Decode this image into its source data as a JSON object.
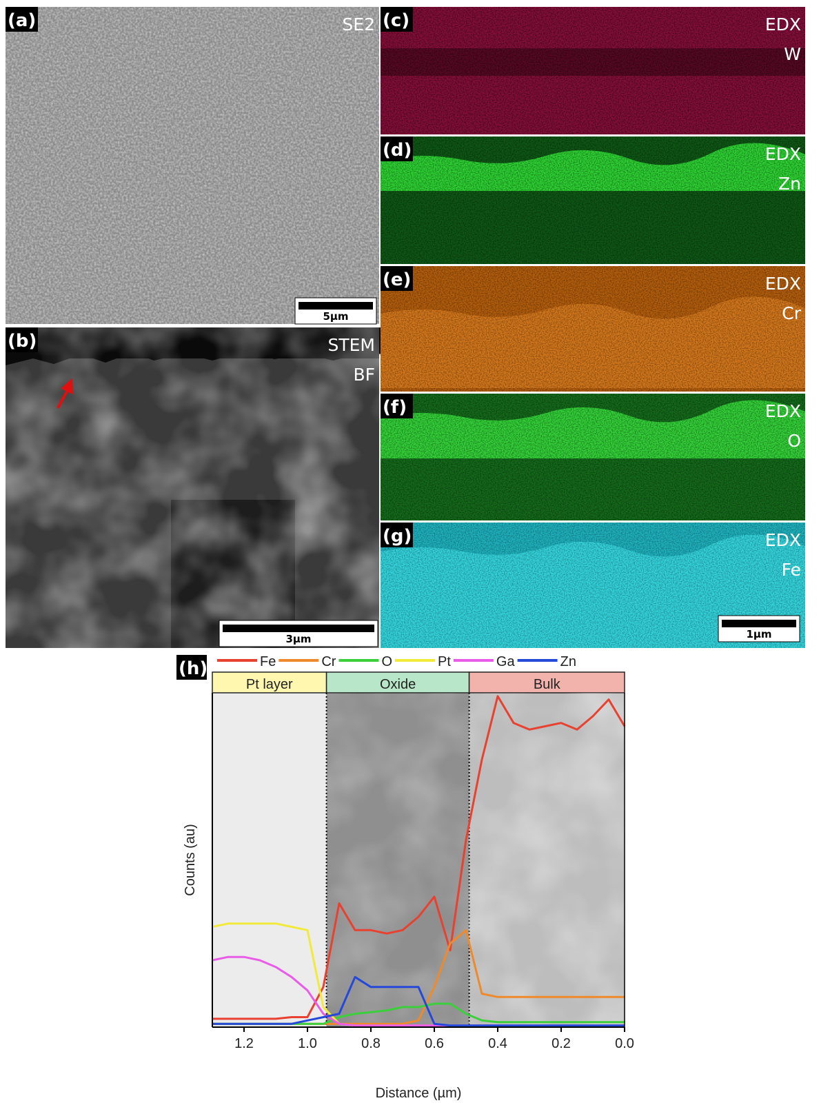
{
  "panels": [
    {
      "label": "(a)",
      "tag": [
        "SE2"
      ],
      "scale_bar": "5µm"
    },
    {
      "label": "(b)",
      "tag": [
        "STEM",
        "BF"
      ],
      "scale_bar": "3µm"
    },
    {
      "label": "(c)",
      "tag": [
        "EDX",
        "W"
      ]
    },
    {
      "label": "(d)",
      "tag": [
        "EDX",
        "Zn"
      ]
    },
    {
      "label": "(e)",
      "tag": [
        "EDX",
        "Cr"
      ]
    },
    {
      "label": "(f)",
      "tag": [
        "EDX",
        "O"
      ]
    },
    {
      "label": "(g)",
      "tag": [
        "EDX",
        "Fe"
      ],
      "scale_bar": "1µm"
    }
  ],
  "chart_data": {
    "type": "line",
    "label": "(h)",
    "xlabel": "Distance (µm)",
    "ylabel": "Counts (au)",
    "xlim": [
      1.3,
      0.0
    ],
    "ylim": [
      0,
      100
    ],
    "xticks": [
      1.2,
      {
        "value": 1,
        "label": "1.0"
      },
      0.8,
      0.6,
      0.4,
      0.2,
      {
        "value": 0,
        "label": "0.0"
      }
    ],
    "regions": [
      {
        "label": "Pt layer",
        "from": 1.3,
        "to": 0.94,
        "color": "#fff7b0"
      },
      {
        "label": "Oxide",
        "from": 0.94,
        "to": 0.49,
        "color": "#b8e6c8"
      },
      {
        "label": "Bulk",
        "from": 0.49,
        "to": 0.0,
        "color": "#f2b3ad"
      }
    ],
    "x": [
      1.3,
      1.25,
      1.2,
      1.15,
      1.1,
      1.05,
      1.0,
      0.95,
      0.9,
      0.85,
      0.8,
      0.75,
      0.7,
      0.65,
      0.6,
      0.55,
      0.5,
      0.45,
      0.4,
      0.35,
      0.3,
      0.25,
      0.2,
      0.15,
      0.1,
      0.05,
      0.0
    ],
    "series": [
      {
        "name": "Fe",
        "color": "#e8412f",
        "values": [
          2.5,
          2.5,
          2.5,
          2.5,
          2.5,
          3,
          3,
          12,
          37,
          29,
          29,
          28,
          29,
          33,
          39,
          23,
          56,
          80,
          99,
          91,
          89,
          90,
          91,
          89,
          93,
          98,
          90
        ]
      },
      {
        "name": "Cr",
        "color": "#ee8a2c",
        "values": [
          1,
          1,
          1,
          1,
          1,
          1,
          1,
          1,
          1,
          1,
          1,
          1,
          1,
          2,
          12,
          25,
          29,
          10,
          9,
          9,
          9,
          9,
          9,
          9,
          9,
          9,
          9
        ]
      },
      {
        "name": "O",
        "color": "#3ccf3c",
        "values": [
          1,
          1,
          1,
          1,
          1,
          1,
          1,
          1,
          3,
          4,
          4.5,
          5,
          6,
          6,
          7,
          7,
          4,
          2,
          1.5,
          1.5,
          1.5,
          1.5,
          1.5,
          1.5,
          1.5,
          1.5,
          1.5
        ]
      },
      {
        "name": "Pt",
        "color": "#f2ea3a",
        "values": [
          30,
          31,
          31,
          31,
          31,
          30,
          29,
          6,
          1,
          0.5,
          0.5,
          0.5,
          0.5,
          0.5,
          0.5,
          0.5,
          0.5,
          0.5,
          0.5,
          0.5,
          0.5,
          0.5,
          0.5,
          0.5,
          0.5,
          0.5,
          0.5
        ]
      },
      {
        "name": "Ga",
        "color": "#e85ce8",
        "values": [
          20,
          21,
          21,
          20,
          18,
          15,
          11,
          4,
          1,
          0.5,
          0.5,
          0.5,
          0.5,
          0.5,
          0.5,
          0.5,
          0.5,
          0.5,
          0.5,
          0.5,
          0.5,
          0.5,
          0.5,
          0.5,
          0.5,
          0.5,
          0.5
        ]
      },
      {
        "name": "Zn",
        "color": "#2448d8",
        "values": [
          1,
          1,
          1,
          1,
          1,
          1,
          2,
          3,
          4,
          15,
          12,
          12,
          12,
          12,
          1,
          0.5,
          0.5,
          0.5,
          0.5,
          0.5,
          0.5,
          0.5,
          0.5,
          0.5,
          0.5,
          0.5,
          0.5
        ]
      }
    ]
  }
}
